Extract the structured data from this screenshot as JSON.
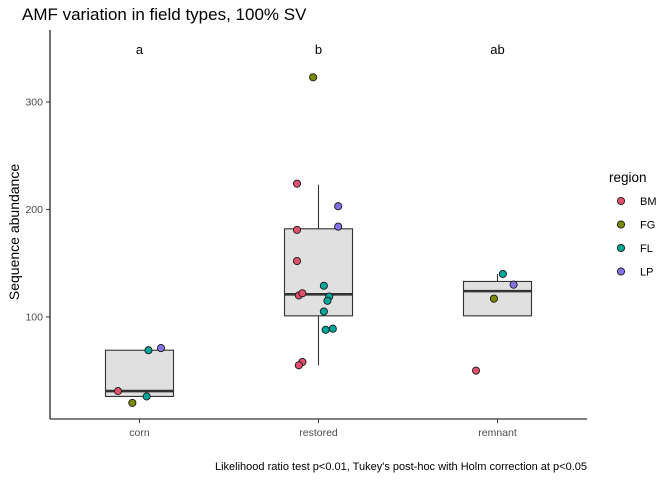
{
  "chart_data": {
    "type": "box",
    "title": "AMF variation in field types, 100% SV",
    "caption": "Likelihood ratio test p<0.01, Tukey's post-hoc with Holm correction at p<0.05",
    "xlabel": "",
    "ylabel": "Sequence abundance",
    "ylim": [
      5,
      367
    ],
    "yticks": [
      100,
      200,
      300
    ],
    "categories": [
      "corn",
      "restored",
      "remnant"
    ],
    "significance_letters": [
      "a",
      "b",
      "ab"
    ],
    "legend": {
      "title": "region",
      "position": "right",
      "entries": [
        {
          "key": "BM",
          "label": "BM",
          "color": "#e0506c"
        },
        {
          "key": "FG",
          "label": "FG",
          "color": "#7a8a00"
        },
        {
          "key": "FL",
          "label": "FL",
          "color": "#00a69a"
        },
        {
          "key": "LP",
          "label": "LP",
          "color": "#8670e6"
        }
      ]
    },
    "boxes": [
      {
        "category": "corn",
        "q1": 26,
        "median": 31,
        "q3": 69,
        "whisker_low": 26,
        "whisker_high": 69
      },
      {
        "category": "restored",
        "q1": 101,
        "median": 121,
        "q3": 182,
        "whisker_low": 55,
        "whisker_high": 223
      },
      {
        "category": "remnant",
        "q1": 101,
        "median": 124,
        "q3": 133,
        "whisker_low": 101,
        "whisker_high": 140
      }
    ],
    "points": [
      {
        "category": "corn",
        "jitter": -0.12,
        "y": 31,
        "region": "BM"
      },
      {
        "category": "corn",
        "jitter": -0.04,
        "y": 20,
        "region": "FG"
      },
      {
        "category": "corn",
        "jitter": 0.04,
        "y": 26,
        "region": "FL"
      },
      {
        "category": "corn",
        "jitter": 0.05,
        "y": 69,
        "region": "FL"
      },
      {
        "category": "corn",
        "jitter": 0.12,
        "y": 71,
        "region": "LP"
      },
      {
        "category": "restored",
        "jitter": -0.12,
        "y": 224,
        "region": "BM"
      },
      {
        "category": "restored",
        "jitter": -0.12,
        "y": 181,
        "region": "BM"
      },
      {
        "category": "restored",
        "jitter": -0.12,
        "y": 152,
        "region": "BM"
      },
      {
        "category": "restored",
        "jitter": -0.11,
        "y": 120,
        "region": "BM"
      },
      {
        "category": "restored",
        "jitter": -0.09,
        "y": 122,
        "region": "BM"
      },
      {
        "category": "restored",
        "jitter": -0.09,
        "y": 58,
        "region": "BM"
      },
      {
        "category": "restored",
        "jitter": -0.11,
        "y": 55,
        "region": "BM"
      },
      {
        "category": "restored",
        "jitter": -0.03,
        "y": 323,
        "region": "FG"
      },
      {
        "category": "restored",
        "jitter": 0.03,
        "y": 129,
        "region": "FL"
      },
      {
        "category": "restored",
        "jitter": 0.06,
        "y": 119,
        "region": "FL"
      },
      {
        "category": "restored",
        "jitter": 0.05,
        "y": 115,
        "region": "FL"
      },
      {
        "category": "restored",
        "jitter": 0.03,
        "y": 105,
        "region": "FL"
      },
      {
        "category": "restored",
        "jitter": 0.04,
        "y": 88,
        "region": "FL"
      },
      {
        "category": "restored",
        "jitter": 0.08,
        "y": 89,
        "region": "FL"
      },
      {
        "category": "restored",
        "jitter": 0.11,
        "y": 203,
        "region": "LP"
      },
      {
        "category": "restored",
        "jitter": 0.11,
        "y": 184,
        "region": "LP"
      },
      {
        "category": "remnant",
        "jitter": -0.12,
        "y": 50,
        "region": "BM"
      },
      {
        "category": "remnant",
        "jitter": -0.02,
        "y": 117,
        "region": "FG"
      },
      {
        "category": "remnant",
        "jitter": 0.03,
        "y": 140,
        "region": "FL"
      },
      {
        "category": "remnant",
        "jitter": 0.09,
        "y": 130,
        "region": "LP"
      }
    ]
  }
}
